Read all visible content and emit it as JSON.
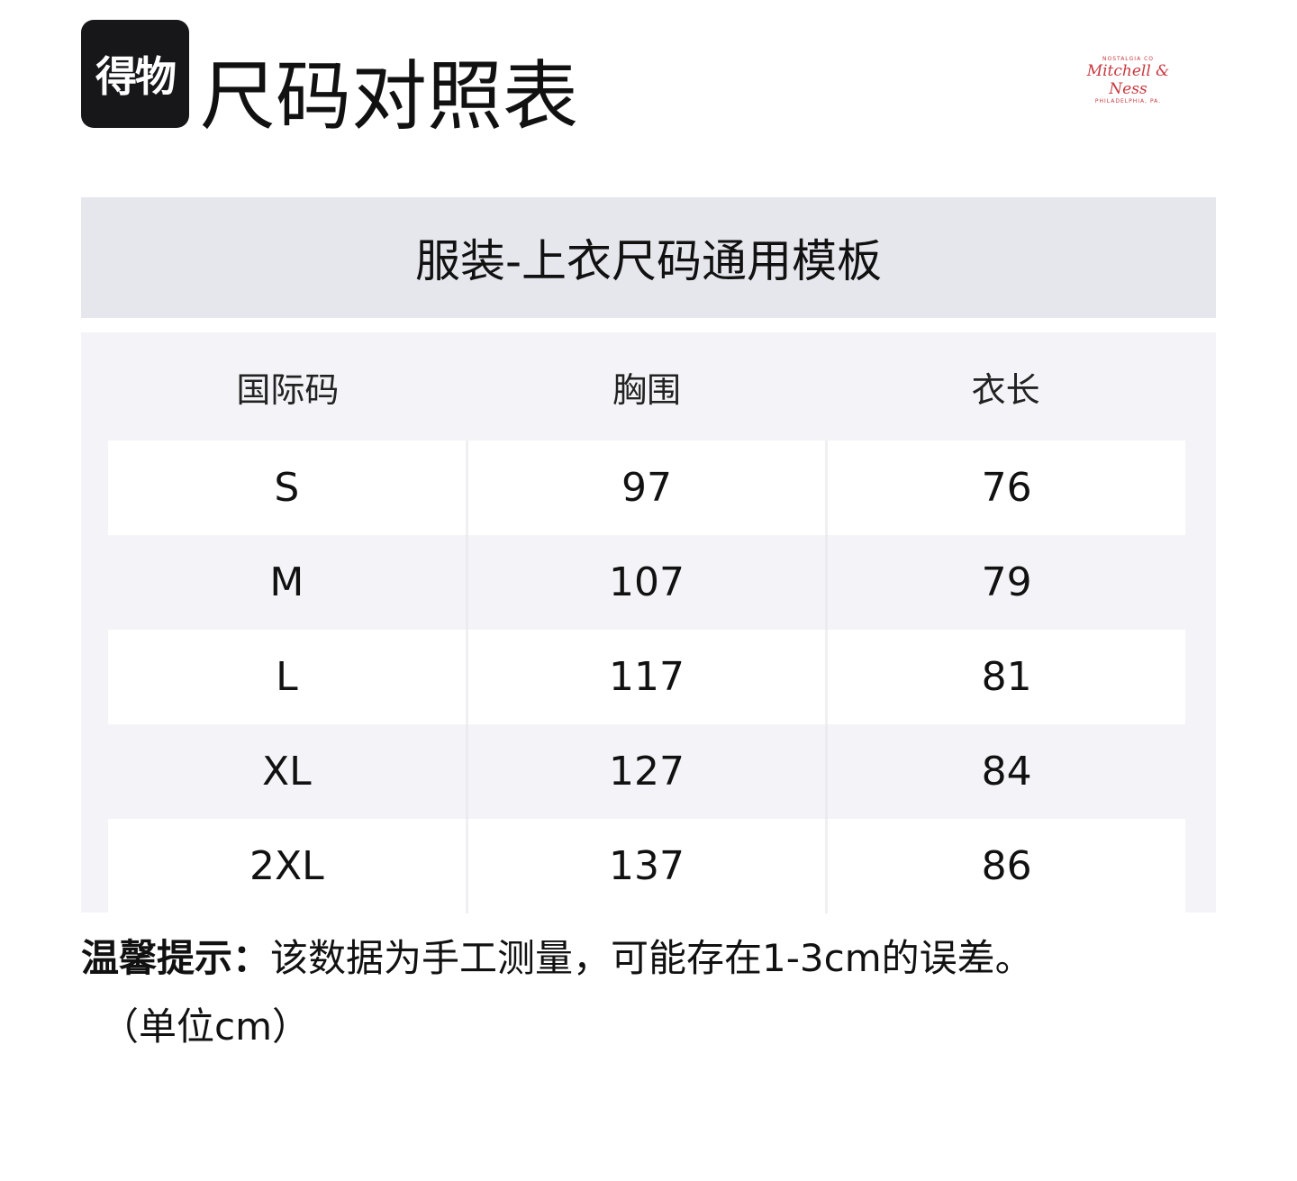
{
  "logo": {
    "text": "得物"
  },
  "title": "尺码对照表",
  "brand_logo": {
    "top": "NOSTALGIA CO",
    "name": "Mitchell & Ness",
    "bottom": "PHILADELPHIA, PA.",
    "color": "#c8383e"
  },
  "table": {
    "caption": "服装-上衣尺码通用模板",
    "headers": [
      "国际码",
      "胸围",
      "衣长"
    ],
    "rows": [
      [
        "S",
        "97",
        "76"
      ],
      [
        "M",
        "107",
        "79"
      ],
      [
        "L",
        "117",
        "81"
      ],
      [
        "XL",
        "127",
        "84"
      ],
      [
        "2XL",
        "137",
        "86"
      ]
    ]
  },
  "note": {
    "label": "温馨提示：",
    "text": "该数据为手工测量，可能存在1-3cm的误差。",
    "unit": "（单位cm）"
  }
}
